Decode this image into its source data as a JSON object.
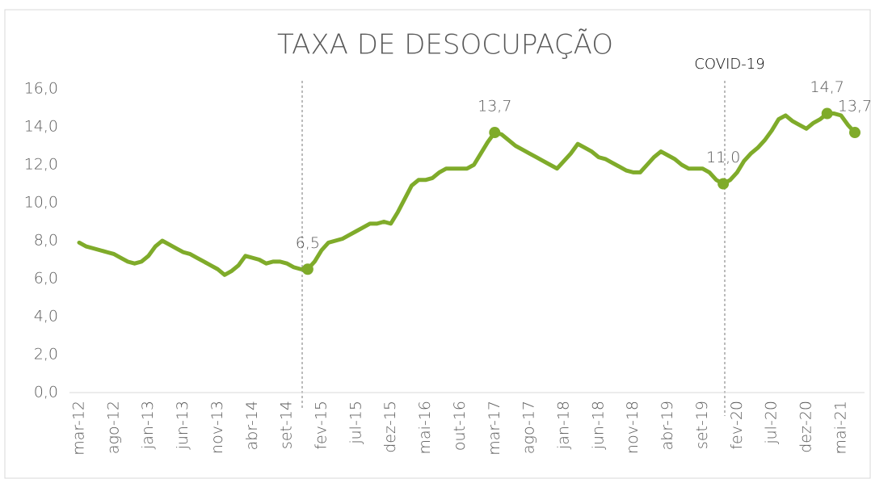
{
  "chart_data": {
    "type": "line",
    "title": "TAXA DE DESOCUPAÇÃO",
    "annotation": "COVID-19",
    "categories": [
      "mar-12",
      null,
      null,
      null,
      null,
      "ago-12",
      null,
      null,
      null,
      null,
      "jan-13",
      null,
      null,
      null,
      null,
      "jun-13",
      null,
      null,
      null,
      null,
      "nov-13",
      null,
      null,
      null,
      null,
      "abr-14",
      null,
      null,
      null,
      null,
      "set-14",
      null,
      null,
      null,
      null,
      "fev-15",
      null,
      null,
      null,
      null,
      "jul-15",
      null,
      null,
      null,
      null,
      "dez-15",
      null,
      null,
      null,
      null,
      "mai-16",
      null,
      null,
      null,
      null,
      "out-16",
      null,
      null,
      null,
      null,
      "mar-17",
      null,
      null,
      null,
      null,
      "ago-17",
      null,
      null,
      null,
      null,
      "jan-18",
      null,
      null,
      null,
      null,
      "jun-18",
      null,
      null,
      null,
      null,
      "nov-18",
      null,
      null,
      null,
      null,
      "abr-19",
      null,
      null,
      null,
      null,
      "set-19",
      null,
      null,
      null,
      null,
      "fev-20",
      null,
      null,
      null,
      null,
      "jul-20",
      null,
      null,
      null,
      null,
      "dez-20",
      null,
      null,
      null,
      null,
      "mai-21",
      null,
      null
    ],
    "values": [
      7.9,
      7.7,
      7.6,
      7.5,
      7.4,
      7.3,
      7.1,
      6.9,
      6.8,
      6.9,
      7.2,
      7.7,
      8.0,
      7.8,
      7.6,
      7.4,
      7.3,
      7.1,
      6.9,
      6.7,
      6.5,
      6.2,
      6.4,
      6.7,
      7.2,
      7.1,
      7.0,
      6.8,
      6.9,
      6.9,
      6.8,
      6.6,
      6.5,
      6.5,
      6.9,
      7.5,
      7.9,
      8.0,
      8.1,
      8.3,
      8.5,
      8.7,
      8.9,
      8.9,
      9.0,
      8.9,
      9.5,
      10.2,
      10.9,
      11.2,
      11.2,
      11.3,
      11.6,
      11.8,
      11.8,
      11.8,
      11.8,
      12.0,
      12.6,
      13.2,
      13.7,
      13.6,
      13.3,
      13.0,
      12.8,
      12.6,
      12.4,
      12.2,
      12.0,
      11.8,
      12.2,
      12.6,
      13.1,
      12.9,
      12.7,
      12.4,
      12.3,
      12.1,
      11.9,
      11.7,
      11.6,
      11.6,
      12.0,
      12.4,
      12.7,
      12.5,
      12.3,
      12.0,
      11.8,
      11.8,
      11.8,
      11.6,
      11.2,
      11.0,
      11.2,
      11.6,
      12.2,
      12.6,
      12.9,
      13.3,
      13.8,
      14.4,
      14.6,
      14.3,
      14.1,
      13.9,
      14.2,
      14.4,
      14.7,
      14.7,
      14.6,
      14.1,
      13.7
    ],
    "value_labels": [
      null,
      null,
      null,
      null,
      null,
      null,
      null,
      null,
      null,
      null,
      null,
      null,
      null,
      null,
      null,
      null,
      null,
      null,
      null,
      null,
      null,
      null,
      null,
      null,
      null,
      null,
      null,
      null,
      null,
      null,
      null,
      null,
      null,
      "6,5",
      null,
      null,
      null,
      null,
      null,
      null,
      null,
      null,
      null,
      null,
      null,
      null,
      null,
      null,
      null,
      null,
      null,
      null,
      null,
      null,
      null,
      null,
      null,
      null,
      null,
      null,
      "13,7",
      null,
      null,
      null,
      null,
      null,
      null,
      null,
      null,
      null,
      null,
      null,
      null,
      null,
      null,
      null,
      null,
      null,
      null,
      null,
      null,
      null,
      null,
      null,
      null,
      null,
      null,
      null,
      null,
      null,
      null,
      null,
      null,
      "11,0",
      null,
      null,
      null,
      null,
      null,
      null,
      null,
      null,
      null,
      null,
      null,
      null,
      null,
      null,
      "14,7",
      null,
      null,
      null,
      "13,7"
    ],
    "color": "#7fab2a",
    "ylim": [
      0,
      16
    ],
    "yticks": [
      {
        "value": 0,
        "label": "0,0"
      },
      {
        "value": 2,
        "label": "2,0"
      },
      {
        "value": 4,
        "label": "4,0"
      },
      {
        "value": 6,
        "label": "6,0"
      },
      {
        "value": 8,
        "label": "8,0"
      },
      {
        "value": 10,
        "label": "10,0"
      },
      {
        "value": 12,
        "label": "12,0"
      },
      {
        "value": 14,
        "label": "14,0"
      },
      {
        "value": 16,
        "label": "16,0"
      }
    ],
    "grid": false
  }
}
